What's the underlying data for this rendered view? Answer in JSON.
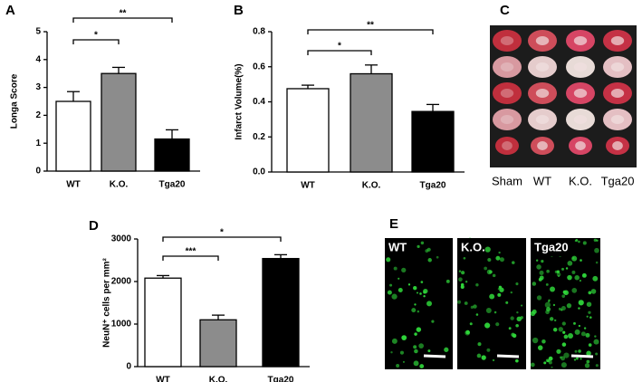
{
  "chart_data": [
    {
      "type": "bar",
      "panel": "A",
      "ylabel": "Longa Score",
      "categories": [
        "WT",
        "K.O.",
        "Tga20"
      ],
      "values": [
        2.5,
        3.5,
        1.15
      ],
      "errors": [
        0.35,
        0.22,
        0.33
      ],
      "colors": [
        "#ffffff",
        "#8c8c8c",
        "#000000"
      ],
      "ylim": [
        0,
        5
      ],
      "yticks": [
        0,
        1,
        2,
        3,
        4,
        5
      ],
      "comparisons": [
        {
          "pair": [
            0,
            1
          ],
          "label": "*"
        },
        {
          "pair": [
            0,
            2
          ],
          "label": "**"
        }
      ]
    },
    {
      "type": "bar",
      "panel": "B",
      "ylabel": "Infarct Volume(%)",
      "categories": [
        "WT",
        "K.O.",
        "Tga20"
      ],
      "values": [
        0.475,
        0.56,
        0.345
      ],
      "errors": [
        0.02,
        0.05,
        0.04
      ],
      "colors": [
        "#ffffff",
        "#8c8c8c",
        "#000000"
      ],
      "ylim": [
        0,
        0.8
      ],
      "yticks": [
        {
          "value": 0,
          "label": "0.0"
        },
        0.2,
        0.4,
        0.6,
        0.8
      ],
      "comparisons": [
        {
          "pair": [
            0,
            1
          ],
          "label": "*"
        },
        {
          "pair": [
            0,
            2
          ],
          "label": "**"
        }
      ]
    },
    {
      "type": "bar",
      "panel": "D",
      "ylabel": "NeuN⁺ cells per mm²",
      "categories": [
        "WT",
        "K.O.",
        "Tga20"
      ],
      "values": [
        2080,
        1100,
        2540
      ],
      "errors": [
        60,
        110,
        90
      ],
      "colors": [
        "#ffffff",
        "#8c8c8c",
        "#000000"
      ],
      "ylim": [
        0,
        3000
      ],
      "yticks": [
        0,
        1000,
        2000,
        3000
      ],
      "comparisons": [
        {
          "pair": [
            0,
            1
          ],
          "label": "***"
        },
        {
          "pair": [
            0,
            2
          ],
          "label": "*"
        }
      ]
    }
  ],
  "panel_c": {
    "label": "C",
    "columns": [
      "Sham",
      "WT",
      "K.O.",
      "Tga20"
    ]
  },
  "panel_e": {
    "label": "E",
    "images": [
      "WT",
      "K.O.",
      "Tga20"
    ]
  }
}
